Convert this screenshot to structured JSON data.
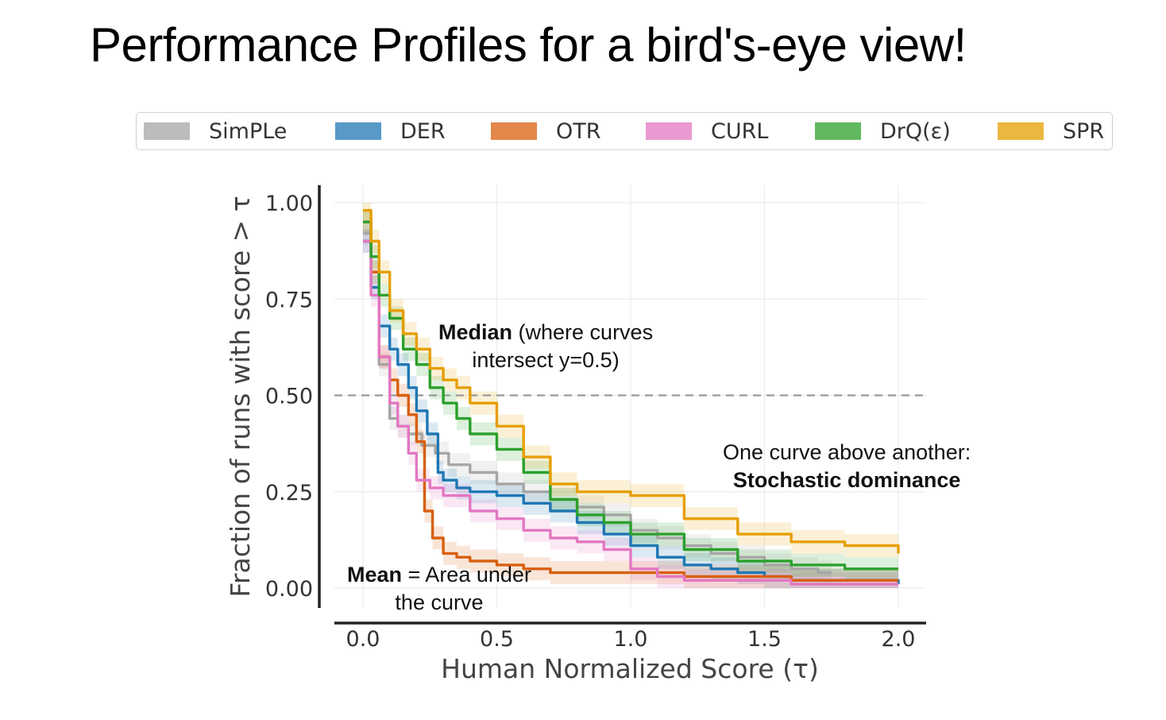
{
  "slide": {
    "title": "Performance Profiles for a bird's-eye view!"
  },
  "chart_data": {
    "type": "line",
    "xlabel": "Human Normalized Score (τ)",
    "ylabel": "Fraction of runs with score  > τ",
    "xlim": [
      0.0,
      2.0
    ],
    "ylim": [
      0.0,
      1.0
    ],
    "xticks": [
      "0.0",
      "0.5",
      "1.0",
      "1.5",
      "2.0"
    ],
    "yticks": [
      "0.00",
      "0.25",
      "0.50",
      "0.75",
      "1.00"
    ],
    "grid": true,
    "legend_position": "top",
    "reference_line": {
      "y": 0.5,
      "style": "dashed",
      "color": "#999999"
    },
    "series": [
      {
        "name": "SimPLe",
        "color": "#a6a6a6",
        "x": [
          0.0,
          0.03,
          0.06,
          0.1,
          0.13,
          0.17,
          0.22,
          0.27,
          0.32,
          0.4,
          0.5,
          0.6,
          0.7,
          0.8,
          0.9,
          1.0,
          1.1,
          1.2,
          1.3,
          1.4,
          1.5,
          1.6,
          1.7,
          1.75
        ],
        "y": [
          0.92,
          0.82,
          0.58,
          0.44,
          0.42,
          0.4,
          0.37,
          0.35,
          0.32,
          0.3,
          0.27,
          0.25,
          0.23,
          0.21,
          0.19,
          0.15,
          0.13,
          0.11,
          0.09,
          0.08,
          0.06,
          0.05,
          0.04,
          0.04
        ]
      },
      {
        "name": "DER",
        "color": "#1f77b4",
        "x": [
          0.0,
          0.03,
          0.06,
          0.1,
          0.13,
          0.17,
          0.2,
          0.24,
          0.28,
          0.3,
          0.35,
          0.4,
          0.5,
          0.6,
          0.7,
          0.8,
          0.9,
          1.0,
          1.1,
          1.2,
          1.3,
          1.4,
          1.5,
          1.6,
          1.7,
          2.0
        ],
        "y": [
          0.9,
          0.78,
          0.68,
          0.62,
          0.58,
          0.52,
          0.46,
          0.4,
          0.3,
          0.28,
          0.26,
          0.25,
          0.24,
          0.22,
          0.2,
          0.17,
          0.14,
          0.11,
          0.08,
          0.06,
          0.05,
          0.04,
          0.03,
          0.02,
          0.02,
          0.01
        ]
      },
      {
        "name": "OTR",
        "color": "#d95f0e",
        "x": [
          0.0,
          0.03,
          0.06,
          0.1,
          0.13,
          0.17,
          0.2,
          0.23,
          0.26,
          0.3,
          0.35,
          0.4,
          0.5,
          0.6,
          0.7,
          0.8,
          1.0,
          1.2,
          1.4,
          1.6,
          1.8,
          2.0
        ],
        "y": [
          0.95,
          0.82,
          0.6,
          0.54,
          0.5,
          0.45,
          0.38,
          0.2,
          0.13,
          0.09,
          0.08,
          0.07,
          0.06,
          0.05,
          0.04,
          0.04,
          0.04,
          0.03,
          0.03,
          0.02,
          0.02,
          0.02
        ]
      },
      {
        "name": "CURL",
        "color": "#e377c2",
        "x": [
          0.0,
          0.03,
          0.06,
          0.1,
          0.13,
          0.17,
          0.2,
          0.25,
          0.3,
          0.4,
          0.5,
          0.6,
          0.7,
          0.8,
          0.9,
          1.0,
          1.1,
          1.2,
          1.4,
          1.6,
          1.8,
          2.0
        ],
        "y": [
          0.9,
          0.76,
          0.6,
          0.48,
          0.42,
          0.35,
          0.28,
          0.26,
          0.24,
          0.2,
          0.18,
          0.15,
          0.13,
          0.12,
          0.1,
          0.05,
          0.03,
          0.02,
          0.02,
          0.01,
          0.01,
          0.01
        ]
      },
      {
        "name": "DrQ(ε)",
        "color": "#2ca02c",
        "x": [
          0.0,
          0.03,
          0.06,
          0.1,
          0.15,
          0.2,
          0.25,
          0.3,
          0.35,
          0.4,
          0.5,
          0.6,
          0.7,
          0.8,
          0.9,
          1.0,
          1.2,
          1.4,
          1.6,
          1.8,
          2.0
        ],
        "y": [
          0.95,
          0.86,
          0.76,
          0.7,
          0.62,
          0.58,
          0.52,
          0.48,
          0.44,
          0.4,
          0.36,
          0.3,
          0.23,
          0.19,
          0.17,
          0.14,
          0.1,
          0.07,
          0.06,
          0.05,
          0.05
        ]
      },
      {
        "name": "SPR",
        "color": "#e69f00",
        "x": [
          0.0,
          0.03,
          0.06,
          0.1,
          0.15,
          0.2,
          0.25,
          0.3,
          0.35,
          0.4,
          0.5,
          0.6,
          0.7,
          0.8,
          0.9,
          1.0,
          1.2,
          1.4,
          1.6,
          1.8,
          2.0
        ],
        "y": [
          0.98,
          0.9,
          0.82,
          0.72,
          0.66,
          0.62,
          0.57,
          0.54,
          0.52,
          0.48,
          0.42,
          0.34,
          0.27,
          0.25,
          0.25,
          0.24,
          0.18,
          0.14,
          0.12,
          0.11,
          0.09
        ]
      }
    ],
    "annotations": {
      "median_bold": "Median",
      "median_rest_1": " (where curves",
      "median_rest_2": "intersect y=0.5)",
      "dominance_1": "One curve above another:",
      "dominance_2": "Stochastic dominance",
      "mean_bold": "Mean",
      "mean_rest_1": " = Area under",
      "mean_rest_2": "the curve"
    }
  }
}
